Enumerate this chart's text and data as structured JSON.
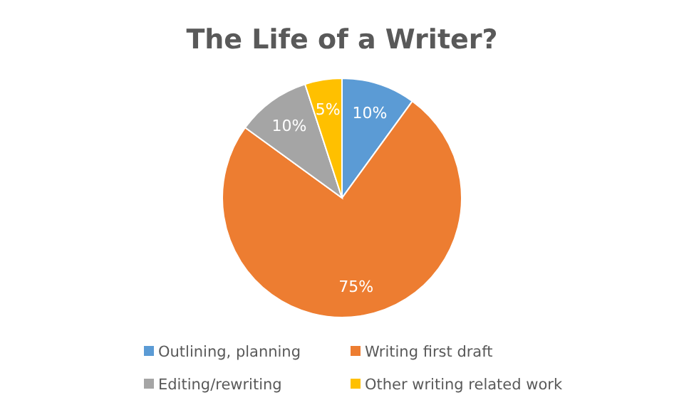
{
  "chart_data": {
    "type": "pie",
    "title": "The Life of a Writer?",
    "categories": [
      "Outlining, planning",
      "Writing first draft",
      "Editing/rewriting",
      "Other writing related work"
    ],
    "values": [
      10,
      75,
      10,
      5
    ],
    "colors": [
      "#5b9bd5",
      "#ed7d31",
      "#a5a5a5",
      "#ffc000"
    ],
    "value_labels": [
      "10%",
      "75%",
      "10%",
      "5%"
    ],
    "legend": "bottom"
  }
}
